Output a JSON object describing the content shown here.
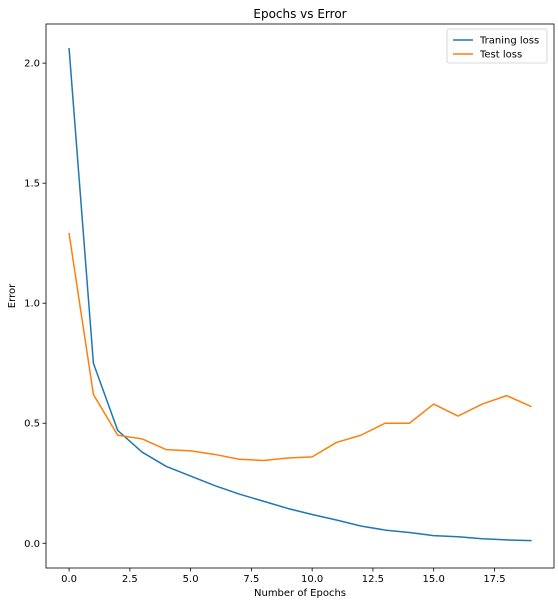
{
  "chart_data": {
    "type": "line",
    "title": "Epochs vs Error",
    "xlabel": "Number of Epochs",
    "ylabel": "Error",
    "xlim": [
      -0.95,
      19.95
    ],
    "ylim": [
      -0.103,
      2.163
    ],
    "xticks": [
      0.0,
      2.5,
      5.0,
      7.5,
      10.0,
      12.5,
      15.0,
      17.5
    ],
    "xtick_labels": [
      "0.0",
      "2.5",
      "5.0",
      "7.5",
      "10.0",
      "12.5",
      "15.0",
      "17.5"
    ],
    "yticks": [
      0.0,
      0.5,
      1.0,
      1.5,
      2.0
    ],
    "ytick_labels": [
      "0.0",
      "0.5",
      "1.0",
      "1.5",
      "2.0"
    ],
    "grid": false,
    "legend_position": "top-right",
    "x": [
      0,
      1,
      2,
      3,
      4,
      5,
      6,
      7,
      8,
      9,
      10,
      11,
      12,
      13,
      14,
      15,
      16,
      17,
      18,
      19
    ],
    "series": [
      {
        "name": "Traning loss",
        "color": "#1f77b4",
        "values": [
          2.06,
          0.75,
          0.47,
          0.38,
          0.32,
          0.28,
          0.24,
          0.205,
          0.175,
          0.145,
          0.12,
          0.097,
          0.072,
          0.055,
          0.045,
          0.032,
          0.027,
          0.019,
          0.014,
          0.011
        ]
      },
      {
        "name": "Test loss",
        "color": "#ff7f0e",
        "values": [
          1.29,
          0.62,
          0.45,
          0.435,
          0.39,
          0.385,
          0.37,
          0.35,
          0.345,
          0.355,
          0.36,
          0.42,
          0.45,
          0.5,
          0.5,
          0.58,
          0.53,
          0.58,
          0.615,
          0.57
        ]
      }
    ]
  }
}
